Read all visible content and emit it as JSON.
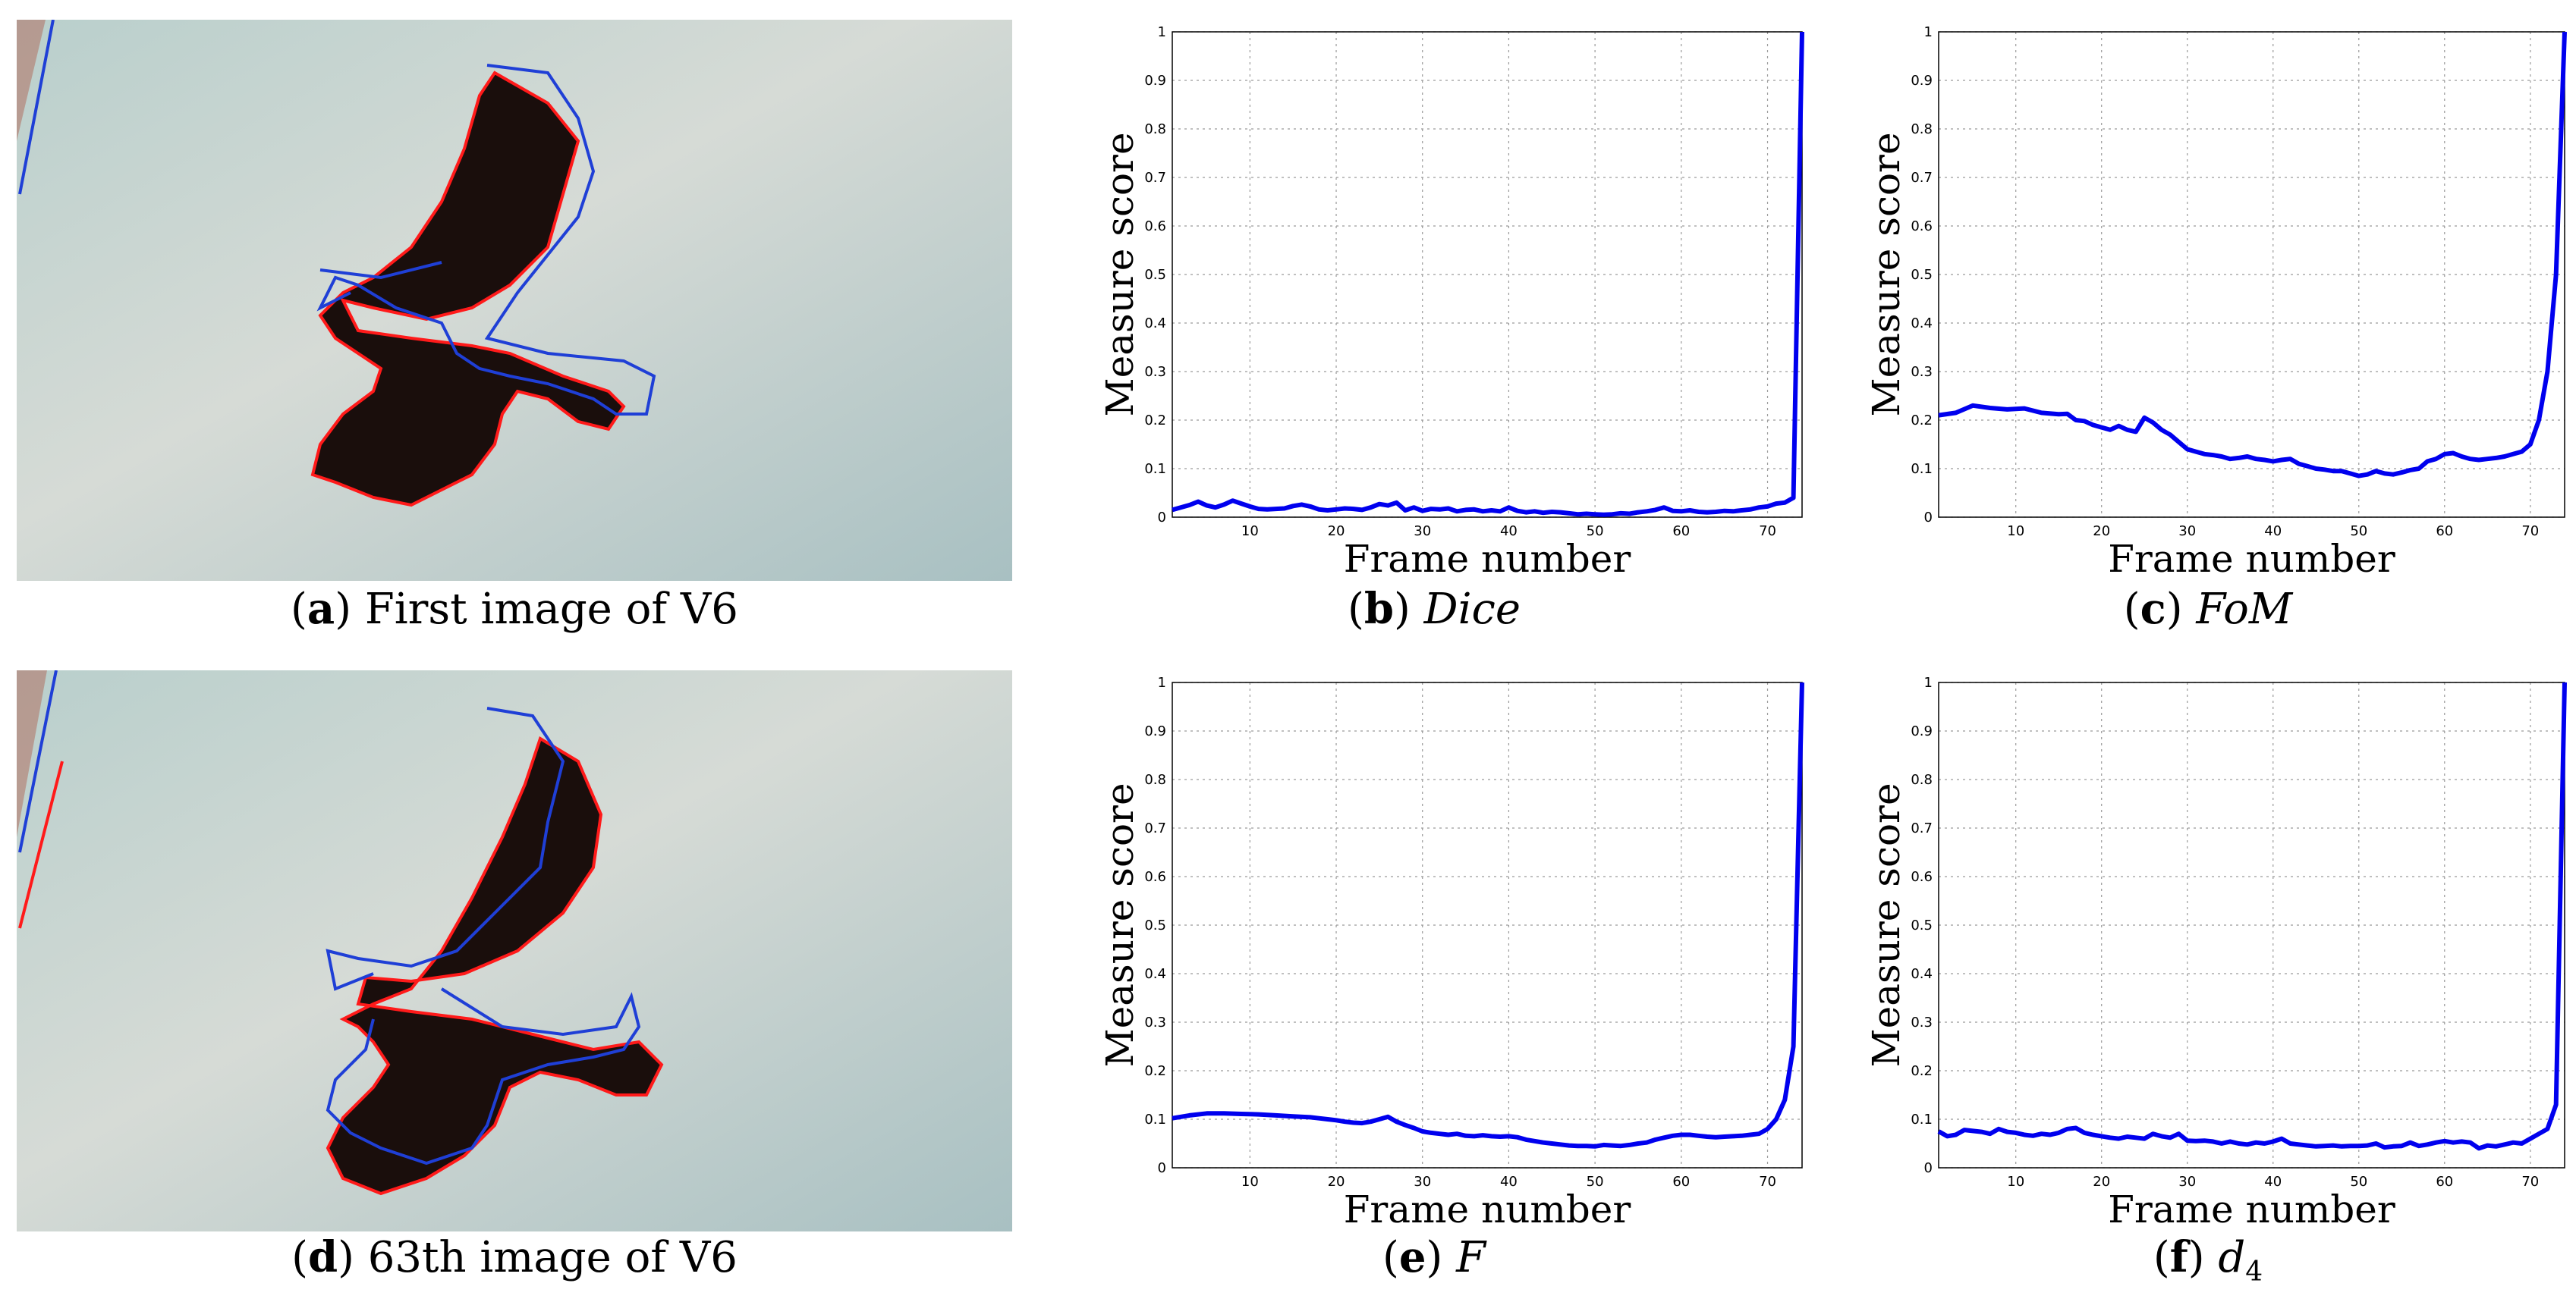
{
  "captions": {
    "a": {
      "letter": "a",
      "text": "First image of V6"
    },
    "b": {
      "letter": "b",
      "text": "Dice"
    },
    "c": {
      "letter": "c",
      "text": "FoM"
    },
    "d": {
      "letter": "d",
      "text": "63th image of V6"
    },
    "e": {
      "letter": "e",
      "text": "F"
    },
    "f": {
      "letter": "f",
      "text": "d",
      "subscript": "4"
    }
  },
  "colors": {
    "series": "#0000ee",
    "contour_red": "#ff1a1a",
    "contour_blue": "#1f3fd6",
    "background": "#c9d3d1"
  },
  "chart_data": [
    {
      "id": "dice",
      "type": "line",
      "title": "",
      "xlabel": "Frame number",
      "ylabel": "Measure score",
      "xlim": [
        1,
        74
      ],
      "ylim": [
        0,
        1
      ],
      "grid": true,
      "xticks": [
        10,
        20,
        30,
        40,
        50,
        60,
        70
      ],
      "yticks": [
        0,
        0.1,
        0.2,
        0.3,
        0.4,
        0.5,
        0.6,
        0.7,
        0.8,
        0.9,
        1
      ],
      "ytick_labels": [
        "0",
        "0.1",
        "0.2",
        "0.3",
        "0.4",
        "0.5",
        "0.6",
        "0.7",
        "0.8",
        "0.9",
        "1"
      ],
      "series": [
        {
          "name": "Dice",
          "x": [
            1,
            3,
            4,
            5,
            6,
            7,
            8,
            9,
            10,
            11,
            12,
            13,
            14,
            15,
            16,
            17,
            18,
            19,
            20,
            21,
            22,
            23,
            24,
            25,
            26,
            27,
            28,
            29,
            30,
            31,
            32,
            33,
            34,
            35,
            36,
            37,
            38,
            39,
            40,
            41,
            42,
            43,
            44,
            45,
            46,
            47,
            48,
            49,
            50,
            51,
            52,
            53,
            54,
            55,
            56,
            57,
            58,
            59,
            60,
            61,
            62,
            63,
            64,
            65,
            66,
            67,
            68,
            69,
            70,
            71,
            72,
            73,
            74
          ],
          "y": [
            0.015,
            0.025,
            0.032,
            0.024,
            0.02,
            0.026,
            0.034,
            0.028,
            0.022,
            0.017,
            0.016,
            0.017,
            0.018,
            0.023,
            0.026,
            0.022,
            0.016,
            0.014,
            0.016,
            0.018,
            0.017,
            0.015,
            0.02,
            0.027,
            0.024,
            0.03,
            0.014,
            0.02,
            0.013,
            0.017,
            0.016,
            0.018,
            0.012,
            0.015,
            0.016,
            0.012,
            0.014,
            0.012,
            0.02,
            0.013,
            0.01,
            0.012,
            0.009,
            0.011,
            0.01,
            0.008,
            0.006,
            0.007,
            0.006,
            0.005,
            0.006,
            0.008,
            0.007,
            0.01,
            0.012,
            0.015,
            0.02,
            0.013,
            0.012,
            0.014,
            0.011,
            0.01,
            0.011,
            0.013,
            0.012,
            0.014,
            0.016,
            0.02,
            0.022,
            0.028,
            0.03,
            0.04,
            1.0
          ]
        }
      ]
    },
    {
      "id": "fom",
      "type": "line",
      "title": "",
      "xlabel": "Frame number",
      "ylabel": "Measure score",
      "xlim": [
        1,
        74
      ],
      "ylim": [
        0,
        1
      ],
      "grid": true,
      "xticks": [
        10,
        20,
        30,
        40,
        50,
        60,
        70
      ],
      "yticks": [
        0,
        0.1,
        0.2,
        0.3,
        0.4,
        0.5,
        0.6,
        0.7,
        0.8,
        0.9,
        1
      ],
      "ytick_labels": [
        "0",
        "0.1",
        "0.2",
        "0.3",
        "0.4",
        "0.5",
        "0.6",
        "0.7",
        "0.8",
        "0.9",
        "1"
      ],
      "series": [
        {
          "name": "FoM",
          "x": [
            1,
            3,
            5,
            7,
            9,
            11,
            13,
            15,
            16,
            17,
            18,
            19,
            20,
            21,
            22,
            23,
            24,
            25,
            26,
            27,
            28,
            29,
            30,
            31,
            32,
            33,
            34,
            35,
            36,
            37,
            38,
            39,
            40,
            41,
            42,
            43,
            44,
            45,
            46,
            47,
            48,
            49,
            50,
            51,
            52,
            53,
            54,
            55,
            56,
            57,
            58,
            59,
            60,
            61,
            62,
            63,
            64,
            65,
            66,
            67,
            68,
            69,
            70,
            71,
            72,
            73,
            74
          ],
          "y": [
            0.21,
            0.215,
            0.23,
            0.225,
            0.222,
            0.224,
            0.215,
            0.212,
            0.213,
            0.2,
            0.198,
            0.19,
            0.185,
            0.18,
            0.188,
            0.18,
            0.176,
            0.205,
            0.195,
            0.18,
            0.17,
            0.155,
            0.14,
            0.135,
            0.13,
            0.128,
            0.125,
            0.12,
            0.122,
            0.125,
            0.12,
            0.118,
            0.115,
            0.118,
            0.12,
            0.11,
            0.105,
            0.1,
            0.098,
            0.095,
            0.095,
            0.09,
            0.085,
            0.088,
            0.095,
            0.09,
            0.088,
            0.092,
            0.097,
            0.1,
            0.115,
            0.12,
            0.13,
            0.132,
            0.125,
            0.12,
            0.118,
            0.12,
            0.122,
            0.125,
            0.13,
            0.135,
            0.15,
            0.2,
            0.3,
            0.5,
            1.0
          ]
        }
      ]
    },
    {
      "id": "f",
      "type": "line",
      "title": "",
      "xlabel": "Frame number",
      "ylabel": "Measure score",
      "xlim": [
        1,
        74
      ],
      "ylim": [
        0,
        1
      ],
      "grid": true,
      "xticks": [
        10,
        20,
        30,
        40,
        50,
        60,
        70
      ],
      "yticks": [
        0,
        0.1,
        0.2,
        0.3,
        0.4,
        0.5,
        0.6,
        0.7,
        0.8,
        0.9,
        1
      ],
      "ytick_labels": [
        "0",
        "0.1",
        "0.2",
        "0.3",
        "0.4",
        "0.5",
        "0.6",
        "0.7",
        "0.8",
        "0.9",
        "1"
      ],
      "series": [
        {
          "name": "F",
          "x": [
            1,
            3,
            5,
            7,
            9,
            11,
            13,
            15,
            17,
            18,
            19,
            20,
            21,
            22,
            23,
            24,
            25,
            26,
            27,
            28,
            29,
            30,
            31,
            32,
            33,
            34,
            35,
            36,
            37,
            38,
            39,
            40,
            41,
            42,
            43,
            44,
            45,
            46,
            47,
            48,
            49,
            50,
            51,
            52,
            53,
            54,
            55,
            56,
            57,
            58,
            59,
            60,
            61,
            62,
            63,
            64,
            65,
            66,
            67,
            68,
            69,
            70,
            71,
            72,
            73,
            74
          ],
          "y": [
            0.102,
            0.108,
            0.112,
            0.112,
            0.111,
            0.11,
            0.108,
            0.106,
            0.104,
            0.102,
            0.1,
            0.098,
            0.095,
            0.093,
            0.092,
            0.095,
            0.1,
            0.105,
            0.095,
            0.088,
            0.082,
            0.075,
            0.072,
            0.07,
            0.068,
            0.07,
            0.066,
            0.065,
            0.067,
            0.065,
            0.064,
            0.065,
            0.063,
            0.058,
            0.055,
            0.052,
            0.05,
            0.048,
            0.046,
            0.045,
            0.045,
            0.044,
            0.047,
            0.046,
            0.045,
            0.047,
            0.05,
            0.052,
            0.058,
            0.062,
            0.066,
            0.068,
            0.068,
            0.066,
            0.064,
            0.063,
            0.064,
            0.065,
            0.066,
            0.068,
            0.07,
            0.08,
            0.1,
            0.14,
            0.25,
            1.0
          ]
        }
      ]
    },
    {
      "id": "d4",
      "type": "line",
      "title": "",
      "xlabel": "Frame number",
      "ylabel": "Measure score",
      "xlim": [
        1,
        74
      ],
      "ylim": [
        0,
        1
      ],
      "grid": true,
      "xticks": [
        10,
        20,
        30,
        40,
        50,
        60,
        70
      ],
      "yticks": [
        0,
        0.1,
        0.2,
        0.3,
        0.4,
        0.5,
        0.6,
        0.7,
        0.8,
        0.9,
        1
      ],
      "ytick_labels": [
        "0",
        "0.1",
        "0.2",
        "0.3",
        "0.4",
        "0.5",
        "0.6",
        "0.7",
        "0.8",
        "0.9",
        "1"
      ],
      "series": [
        {
          "name": "d4",
          "x": [
            1,
            2,
            3,
            4,
            5,
            6,
            7,
            8,
            9,
            10,
            11,
            12,
            13,
            14,
            15,
            16,
            17,
            18,
            19,
            20,
            21,
            22,
            23,
            24,
            25,
            26,
            27,
            28,
            29,
            30,
            31,
            32,
            33,
            34,
            35,
            36,
            37,
            38,
            39,
            40,
            41,
            42,
            43,
            44,
            45,
            46,
            47,
            48,
            49,
            50,
            51,
            52,
            53,
            54,
            55,
            56,
            57,
            58,
            59,
            60,
            61,
            62,
            63,
            64,
            65,
            66,
            67,
            68,
            69,
            70,
            71,
            72,
            73,
            74
          ],
          "y": [
            0.075,
            0.065,
            0.068,
            0.078,
            0.076,
            0.074,
            0.07,
            0.08,
            0.074,
            0.072,
            0.068,
            0.066,
            0.07,
            0.068,
            0.072,
            0.08,
            0.082,
            0.072,
            0.068,
            0.065,
            0.062,
            0.06,
            0.064,
            0.062,
            0.06,
            0.07,
            0.065,
            0.062,
            0.07,
            0.056,
            0.055,
            0.056,
            0.054,
            0.05,
            0.054,
            0.05,
            0.048,
            0.052,
            0.05,
            0.054,
            0.06,
            0.05,
            0.048,
            0.046,
            0.044,
            0.045,
            0.046,
            0.044,
            0.045,
            0.045,
            0.046,
            0.05,
            0.042,
            0.044,
            0.045,
            0.052,
            0.045,
            0.048,
            0.052,
            0.055,
            0.052,
            0.054,
            0.052,
            0.04,
            0.046,
            0.044,
            0.048,
            0.052,
            0.05,
            0.06,
            0.07,
            0.08,
            0.13,
            1.0
          ]
        }
      ]
    }
  ]
}
